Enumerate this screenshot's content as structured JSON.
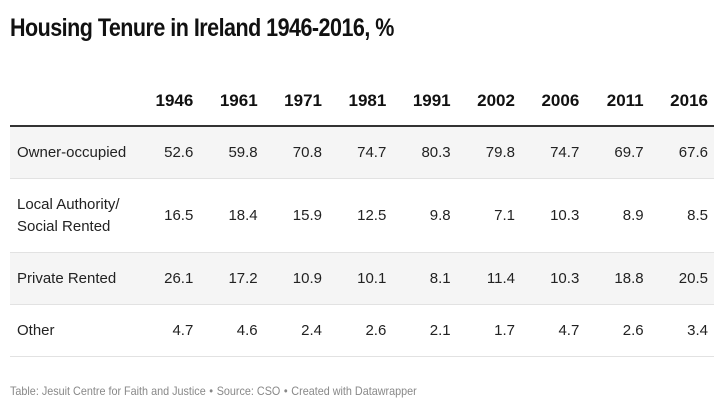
{
  "title": "Housing Tenure in Ireland 1946-2016, %",
  "footer": {
    "table_label": "Table: Jesuit Centre for Faith and Justice",
    "source": "Source: CSO",
    "credit": "Created with Datawrapper",
    "separator": "•"
  },
  "chart_data": {
    "type": "table",
    "title": "Housing Tenure in Ireland 1946-2016, %",
    "columns": [
      "1946",
      "1961",
      "1971",
      "1981",
      "1991",
      "2002",
      "2006",
      "2011",
      "2016"
    ],
    "rows": [
      {
        "label": "Owner-occupied",
        "values": [
          "52.6",
          "59.8",
          "70.8",
          "74.7",
          "80.3",
          "79.8",
          "74.7",
          "69.7",
          "67.6"
        ]
      },
      {
        "label": "Local Authority/\nSocial Rented",
        "values": [
          "16.5",
          "18.4",
          "15.9",
          "12.5",
          "9.8",
          "7.1",
          "10.3",
          "8.9",
          "8.5"
        ]
      },
      {
        "label": "Private Rented",
        "values": [
          "26.1",
          "17.2",
          "10.9",
          "10.1",
          "8.1",
          "11.4",
          "10.3",
          "18.8",
          "20.5"
        ]
      },
      {
        "label": "Other",
        "values": [
          "4.7",
          "4.6",
          "2.4",
          "2.6",
          "2.1",
          "1.7",
          "4.7",
          "2.6",
          "3.4"
        ]
      }
    ]
  }
}
